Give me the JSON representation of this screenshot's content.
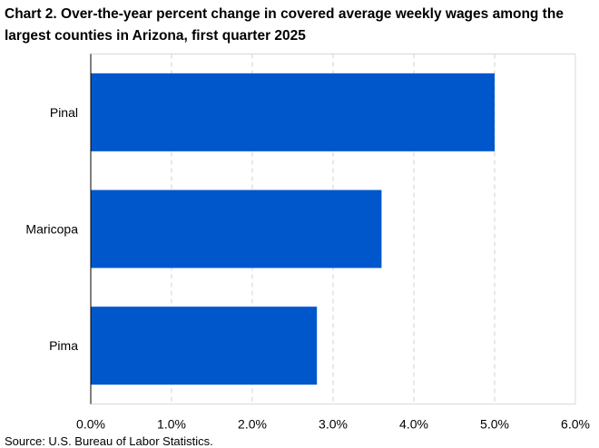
{
  "chart_data": {
    "type": "bar",
    "orientation": "horizontal",
    "title": "Chart 2. Over-the-year percent change in covered average weekly wages among the largest counties in Arizona, first quarter 2025",
    "categories": [
      "Pinal",
      "Maricopa",
      "Pima"
    ],
    "values": [
      5.0,
      3.6,
      2.8
    ],
    "xlim": [
      0,
      6
    ],
    "x_ticks": [
      "0.0%",
      "1.0%",
      "2.0%",
      "3.0%",
      "4.0%",
      "5.0%",
      "6.0%"
    ],
    "xlabel": "",
    "ylabel": "",
    "grid": "vertical dashed",
    "bar_color": "#0057cc",
    "source": "Source: U.S. Bureau of Labor Statistics."
  }
}
